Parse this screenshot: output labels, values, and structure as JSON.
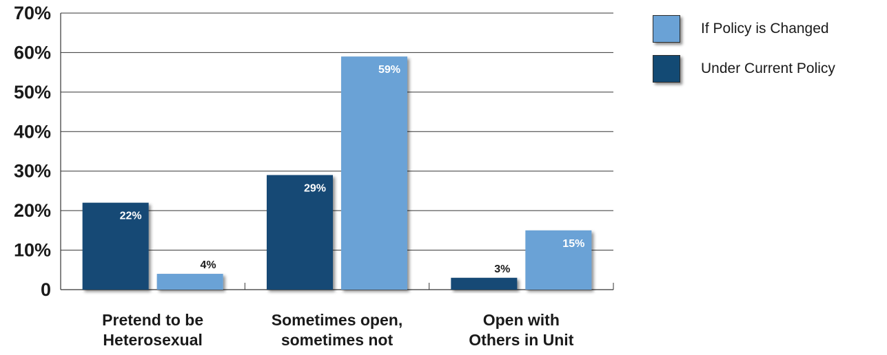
{
  "chart_data": {
    "type": "bar",
    "categories": [
      [
        "Pretend to be",
        "Heterosexual"
      ],
      [
        "Sometimes open,",
        "sometimes not"
      ],
      [
        "Open with",
        "Others in Unit"
      ]
    ],
    "series": [
      {
        "name": "Under Current Policy",
        "values": [
          22,
          29,
          3
        ],
        "labels": [
          "22%",
          "29%",
          "3%"
        ],
        "color": "#134a74"
      },
      {
        "name": "If Policy is Changed",
        "values": [
          4,
          59,
          15
        ],
        "labels": [
          "4%",
          "59%",
          "15%"
        ],
        "color": "#6aa2d6"
      }
    ],
    "y_ticks": [
      0,
      10,
      20,
      30,
      40,
      50,
      60,
      70
    ],
    "y_tick_labels": [
      "0",
      "10%",
      "20%",
      "30%",
      "40%",
      "50%",
      "60%",
      "70%"
    ],
    "ylim": [
      0,
      70
    ],
    "grid": true,
    "legend_position": "top-right"
  },
  "legend": {
    "items": [
      {
        "label": "If Policy is Changed",
        "color": "#6aa2d6"
      },
      {
        "label": "Under Current Policy",
        "color": "#134a74"
      }
    ]
  }
}
